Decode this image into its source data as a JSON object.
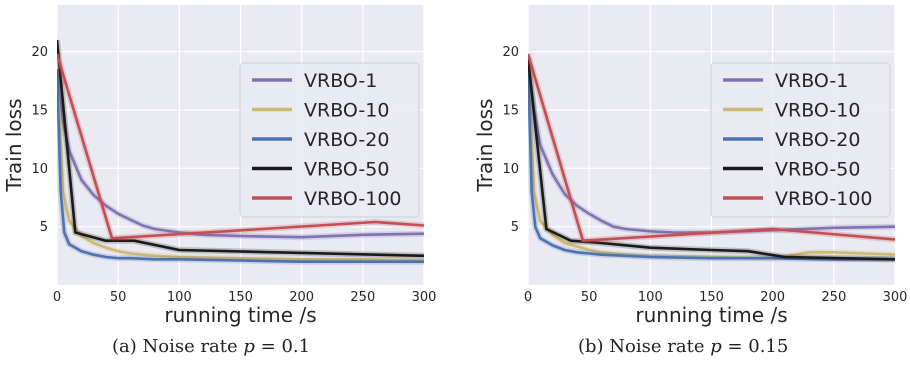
{
  "captions": [
    {
      "prefix": "(a) Noise rate ",
      "var": "p",
      "eq": " = 0.1"
    },
    {
      "prefix": "(b) Noise rate ",
      "var": "p",
      "eq": " = 0.15"
    }
  ],
  "chart_data": [
    {
      "type": "line",
      "title": "",
      "xlabel": "running time /s",
      "ylabel": "Train loss",
      "xlim": [
        0,
        300
      ],
      "ylim": [
        0,
        24
      ],
      "xticks": [
        0,
        50,
        100,
        150,
        200,
        250,
        300
      ],
      "yticks": [
        5,
        10,
        15,
        20
      ],
      "grid": true,
      "legend_position": "upper right",
      "series": [
        {
          "name": "VRBO-1",
          "color": "#8172b2",
          "x": [
            0,
            5,
            10,
            20,
            30,
            40,
            50,
            60,
            70,
            80,
            100,
            120,
            150,
            200,
            250,
            300
          ],
          "y": [
            18.5,
            14,
            11.5,
            9,
            7.7,
            6.8,
            6.1,
            5.6,
            5.1,
            4.8,
            4.5,
            4.3,
            4.2,
            4.1,
            4.3,
            4.4
          ]
        },
        {
          "name": "VRBO-10",
          "color": "#ccb974",
          "x": [
            0,
            5,
            10,
            20,
            30,
            40,
            50,
            60,
            80,
            100,
            150,
            200,
            250,
            300
          ],
          "y": [
            18.5,
            8,
            5.5,
            4.2,
            3.6,
            3.2,
            2.9,
            2.7,
            2.5,
            2.4,
            2.3,
            2.2,
            2.2,
            2.1
          ]
        },
        {
          "name": "VRBO-20",
          "color": "#4c72b0",
          "x": [
            0,
            3,
            6,
            10,
            20,
            30,
            40,
            50,
            60,
            80,
            100,
            150,
            200,
            250,
            300
          ],
          "y": [
            18.5,
            8,
            4.5,
            3.5,
            2.9,
            2.6,
            2.4,
            2.3,
            2.3,
            2.2,
            2.2,
            2.1,
            2.0,
            2.0,
            2.0
          ]
        },
        {
          "name": "VRBO-50",
          "color": "#1a1a1a",
          "x": [
            0,
            15,
            40,
            63,
            100,
            300
          ],
          "y": [
            21,
            4.5,
            3.8,
            3.8,
            3.0,
            2.5
          ]
        },
        {
          "name": "VRBO-100",
          "color": "#c44e52",
          "x": [
            0,
            45,
            260,
            300
          ],
          "y": [
            19.8,
            4.0,
            5.4,
            5.1
          ]
        }
      ]
    },
    {
      "type": "line",
      "title": "",
      "xlabel": "running time /s",
      "ylabel": "Train loss",
      "xlim": [
        0,
        300
      ],
      "ylim": [
        0,
        24
      ],
      "xticks": [
        0,
        50,
        100,
        150,
        200,
        250,
        300
      ],
      "yticks": [
        5,
        10,
        15,
        20
      ],
      "grid": true,
      "legend_position": "upper right",
      "series": [
        {
          "name": "VRBO-1",
          "color": "#8172b2",
          "x": [
            0,
            5,
            10,
            20,
            30,
            40,
            50,
            60,
            70,
            80,
            100,
            120,
            150,
            200,
            250,
            300
          ],
          "y": [
            19,
            15,
            12,
            9.5,
            7.8,
            6.8,
            6.1,
            5.5,
            5.0,
            4.8,
            4.6,
            4.5,
            4.5,
            4.7,
            4.9,
            5.0
          ]
        },
        {
          "name": "VRBO-10",
          "color": "#ccb974",
          "x": [
            0,
            5,
            10,
            20,
            30,
            40,
            50,
            60,
            80,
            100,
            150,
            200,
            230,
            250,
            300
          ],
          "y": [
            19,
            8,
            5.5,
            4.3,
            3.6,
            3.3,
            3.0,
            2.8,
            2.6,
            2.5,
            2.4,
            2.3,
            2.8,
            2.8,
            2.6
          ]
        },
        {
          "name": "VRBO-20",
          "color": "#4c72b0",
          "x": [
            0,
            3,
            6,
            10,
            20,
            30,
            40,
            50,
            60,
            80,
            100,
            150,
            200,
            250,
            300
          ],
          "y": [
            19,
            8,
            5,
            4.0,
            3.4,
            3.0,
            2.8,
            2.7,
            2.6,
            2.5,
            2.4,
            2.3,
            2.3,
            2.2,
            2.2
          ]
        },
        {
          "name": "VRBO-50",
          "color": "#1a1a1a",
          "x": [
            0,
            15,
            35,
            60,
            100,
            150,
            180,
            210,
            300
          ],
          "y": [
            19.5,
            4.8,
            3.8,
            3.6,
            3.2,
            3.0,
            2.9,
            2.4,
            2.2
          ]
        },
        {
          "name": "VRBO-100",
          "color": "#c44e52",
          "x": [
            0,
            45,
            200,
            300
          ],
          "y": [
            19.8,
            3.8,
            4.8,
            3.9
          ]
        }
      ]
    }
  ]
}
